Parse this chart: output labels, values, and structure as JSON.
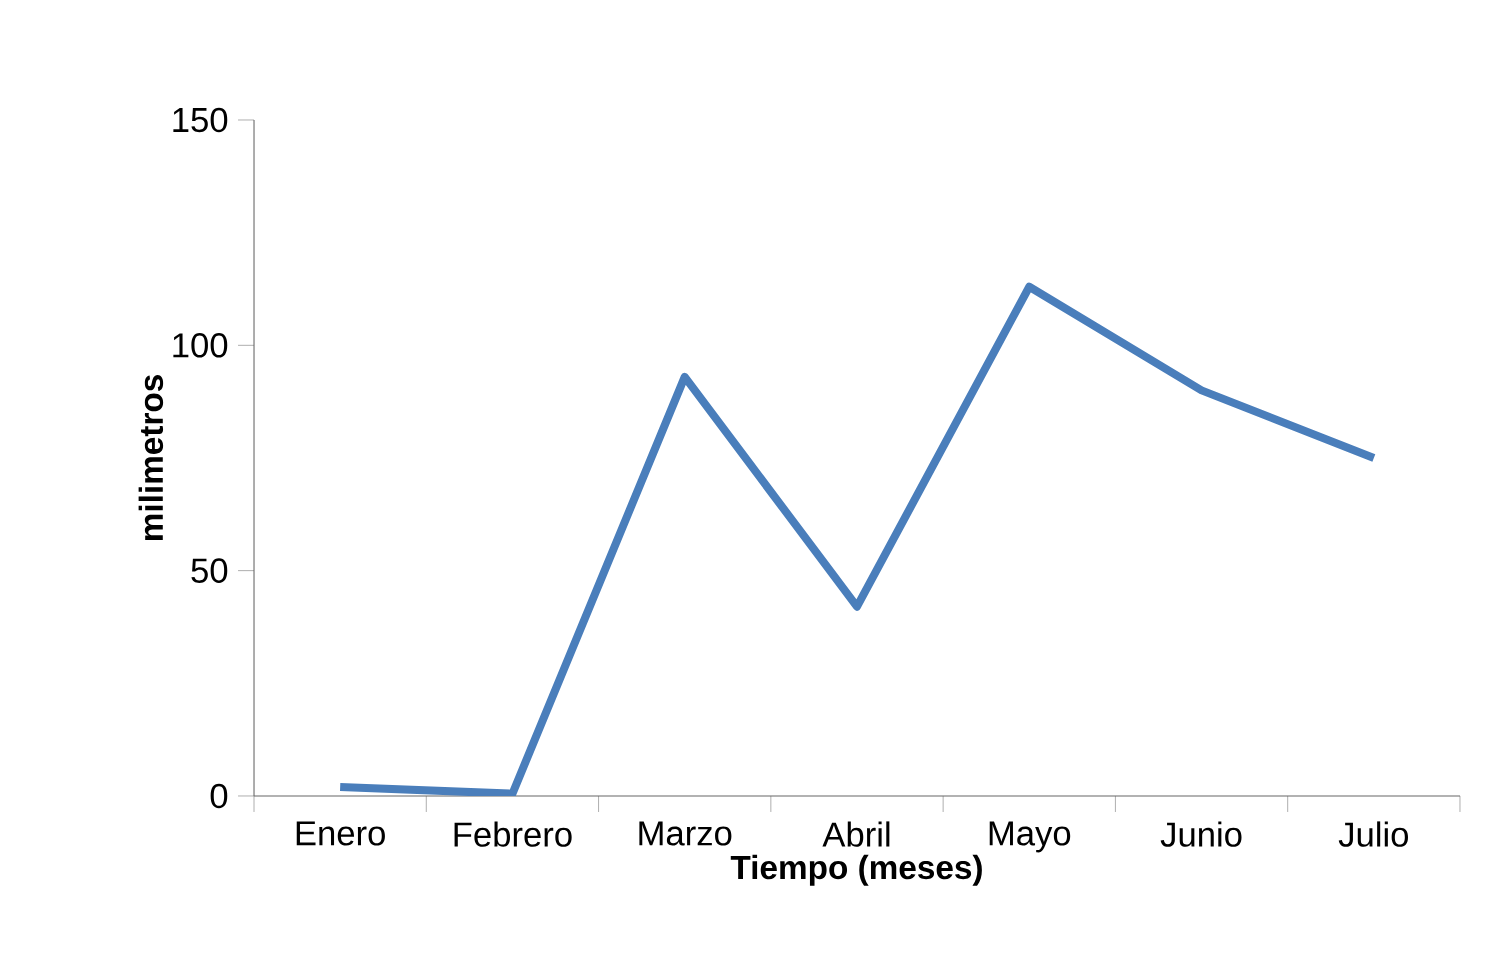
{
  "chart_data": {
    "type": "line",
    "xlabel": "Tiempo (meses)",
    "ylabel": "milimetros",
    "categories": [
      "Enero",
      "Febrero",
      "Marzo",
      "Abril",
      "Mayo",
      "Junio",
      "Julio"
    ],
    "series": [
      {
        "color": "#4a7ebb",
        "values": [
          2,
          0.5,
          93,
          42,
          113,
          90,
          75
        ]
      }
    ],
    "ylim": [
      0,
      150
    ],
    "yticks": [
      0,
      50,
      100,
      150
    ],
    "grid": false,
    "marker": "none",
    "line_style": "solid"
  }
}
